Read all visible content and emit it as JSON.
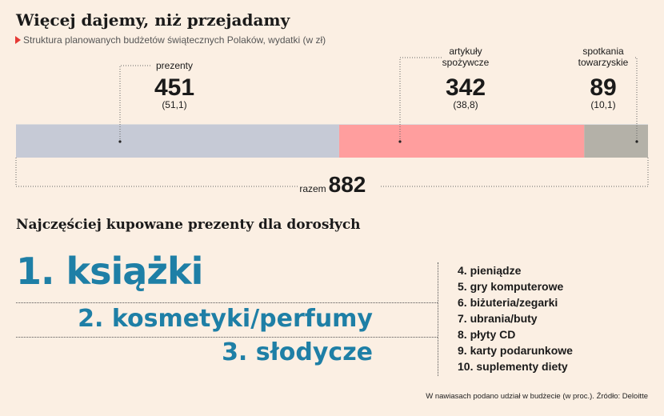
{
  "header": {
    "title": "Więcej dajemy, niż przejadamy",
    "subtitle": "Struktura planowanych budżetów świątecznych Polaków, wydatki (w zł)"
  },
  "chart_data": {
    "type": "bar",
    "orientation": "horizontal-stacked",
    "unit": "zł",
    "series": [
      {
        "name": "prezenty",
        "name_lines": [
          "prezenty"
        ],
        "value": 451,
        "share_label": "(51,1)",
        "color": "#c6cad6"
      },
      {
        "name": "artykuły spożywcze",
        "name_lines": [
          "artykuły",
          "spożywcze"
        ],
        "value": 342,
        "share_label": "(38,8)",
        "color": "#ff9e9e"
      },
      {
        "name": "spotkania towarzyskie",
        "name_lines": [
          "spotkania",
          "towarzyskie"
        ],
        "value": 89,
        "share_label": "(10,1)",
        "color": "#b4b1a8"
      }
    ],
    "total_label": "razem",
    "total": 882
  },
  "ranking": {
    "title": "Najczęściej kupowane prezenty dla dorosłych",
    "top": [
      "1. książki",
      "2. kosmetyki/perfumy",
      "3. słodycze"
    ],
    "others": [
      "4. pieniądze",
      "5. gry komputerowe",
      "6. biżuteria/zegarki",
      "7. ubrania/buty",
      "8. płyty CD",
      "9. karty podarunkowe",
      "10. suplementy diety"
    ]
  },
  "footnote": "W nawiasach podano udział w budżecie (w proc.). Źródło: Deloitte"
}
